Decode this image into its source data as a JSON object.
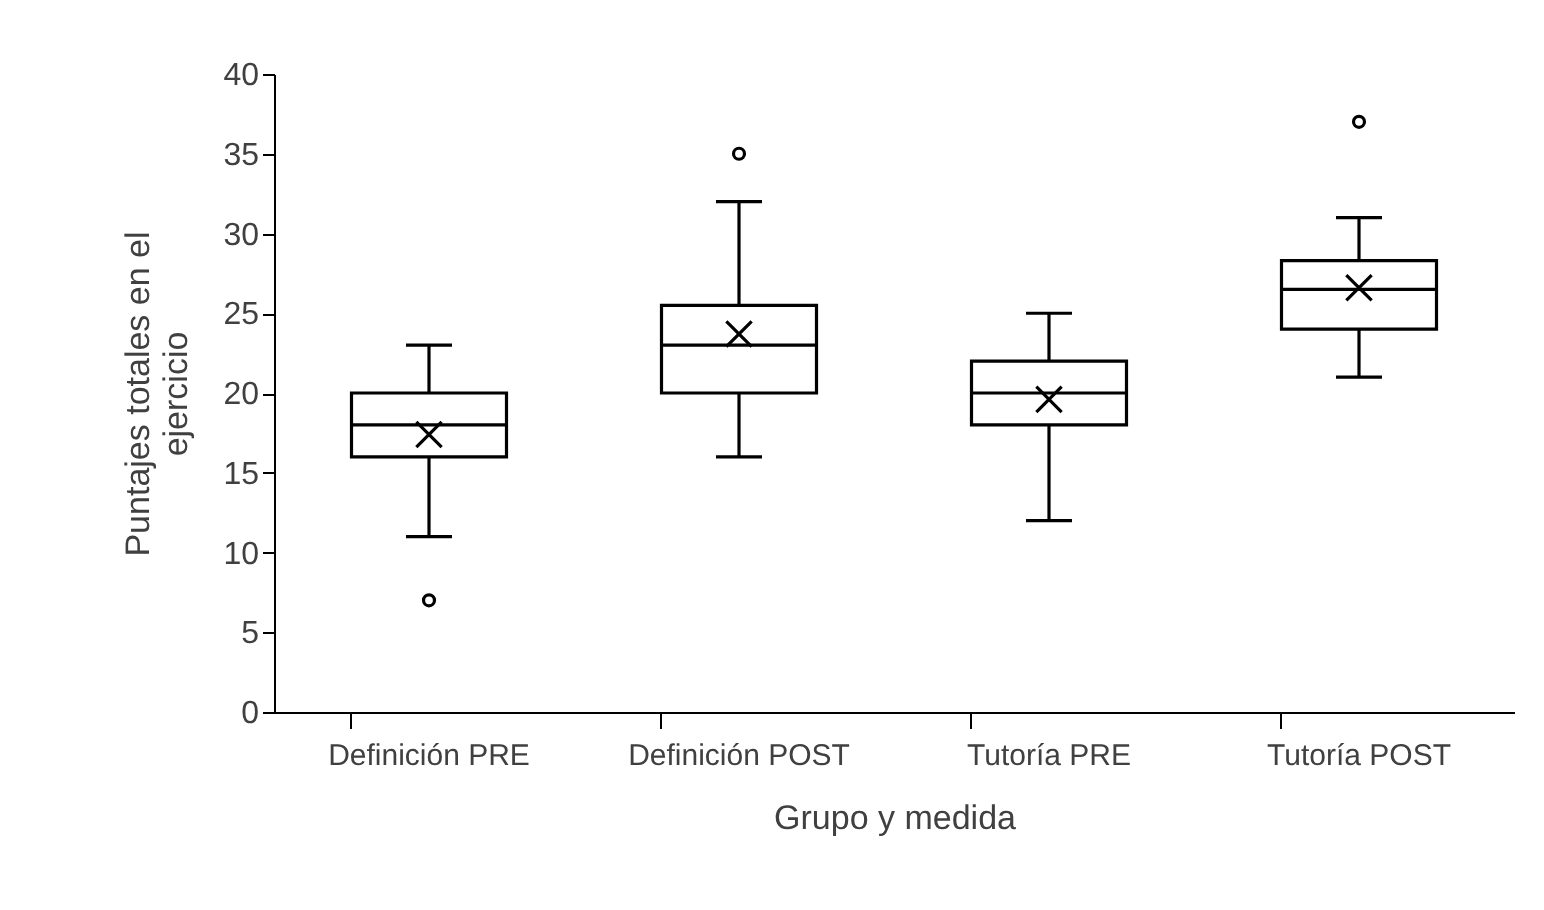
{
  "chart_data": {
    "type": "box",
    "xlabel": "Grupo y medida",
    "ylabel": "Puntajes totales en el ejercicio",
    "categories": [
      "Definición PRE",
      "Definición POST",
      "Tutoría PRE",
      "Tutoría POST"
    ],
    "boxes": [
      {
        "low": 11,
        "q1": 16,
        "median": 18,
        "q3": 20,
        "high": 23,
        "mean": 17.4,
        "outliers": [
          7
        ]
      },
      {
        "low": 16,
        "q1": 20,
        "median": 23,
        "q3": 25.5,
        "high": 32,
        "mean": 23.7,
        "outliers": [
          35
        ]
      },
      {
        "low": 12,
        "q1": 18,
        "median": 20,
        "q3": 22,
        "high": 25,
        "mean": 19.6
      },
      {
        "low": 21,
        "q1": 24,
        "median": 26.5,
        "q3": 28.3,
        "high": 31,
        "mean": 26.6,
        "outliers": [
          37
        ]
      }
    ],
    "ylim": [
      0,
      40
    ],
    "yticks": [
      0,
      5,
      10,
      15,
      20,
      25,
      30,
      35,
      40
    ]
  }
}
